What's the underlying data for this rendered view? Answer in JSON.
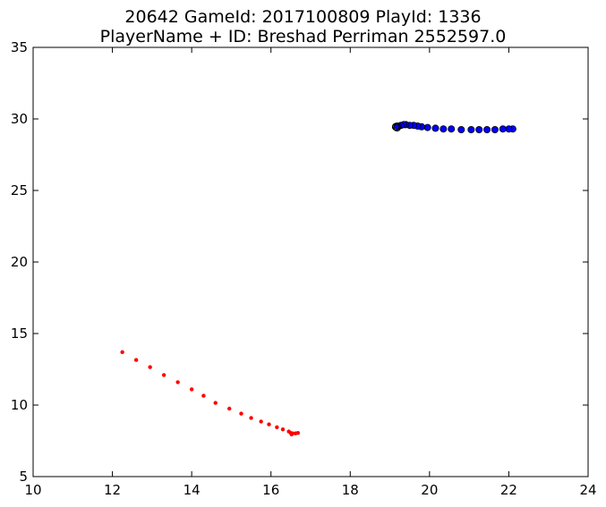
{
  "chart_data": {
    "type": "scatter",
    "title_lines": [
      "20642 GameId: 2017100809 PlayId: 1336",
      "PlayerName + ID: Breshad Perriman 2552597.0"
    ],
    "xlabel": "",
    "ylabel": "",
    "xlim": [
      10,
      24
    ],
    "ylim": [
      5,
      35
    ],
    "x_ticks": [
      "10",
      "12",
      "14",
      "16",
      "18",
      "20",
      "22",
      "24"
    ],
    "y_ticks": [
      "5",
      "10",
      "15",
      "20",
      "25",
      "30",
      "35"
    ],
    "grid": false,
    "legend": "none",
    "series": [
      {
        "color": "#ff0000",
        "marker": "small-dot",
        "x": [
          12.25,
          12.6,
          12.95,
          13.3,
          13.65,
          14.0,
          14.3,
          14.6,
          14.95,
          15.25,
          15.5,
          15.75,
          15.95,
          16.15,
          16.3,
          16.45,
          16.5,
          16.55,
          16.62,
          16.68,
          16.52
        ],
        "y": [
          13.7,
          13.15,
          12.65,
          12.1,
          11.6,
          11.1,
          10.65,
          10.15,
          9.75,
          9.4,
          9.1,
          8.85,
          8.65,
          8.45,
          8.3,
          8.15,
          8.05,
          8.02,
          8.02,
          8.05,
          7.95
        ]
      },
      {
        "color": "#0000ff",
        "marker": "circle",
        "x": [
          22.1,
          22.0,
          21.85,
          21.65,
          21.45,
          21.25,
          21.05,
          20.8,
          20.55,
          20.35,
          20.15,
          19.95,
          19.8,
          19.7,
          19.6,
          19.5,
          19.4,
          19.35,
          19.28,
          19.22,
          19.18
        ],
        "y": [
          29.3,
          29.3,
          29.3,
          29.25,
          29.25,
          29.25,
          29.25,
          29.25,
          29.3,
          29.3,
          29.35,
          29.4,
          29.45,
          29.5,
          29.55,
          29.55,
          29.6,
          29.6,
          29.55,
          29.5,
          29.5
        ]
      },
      {
        "color": "#000000",
        "marker": "hollow-circle",
        "x": [
          19.15,
          19.18
        ],
        "y": [
          29.45,
          29.4
        ]
      }
    ]
  }
}
